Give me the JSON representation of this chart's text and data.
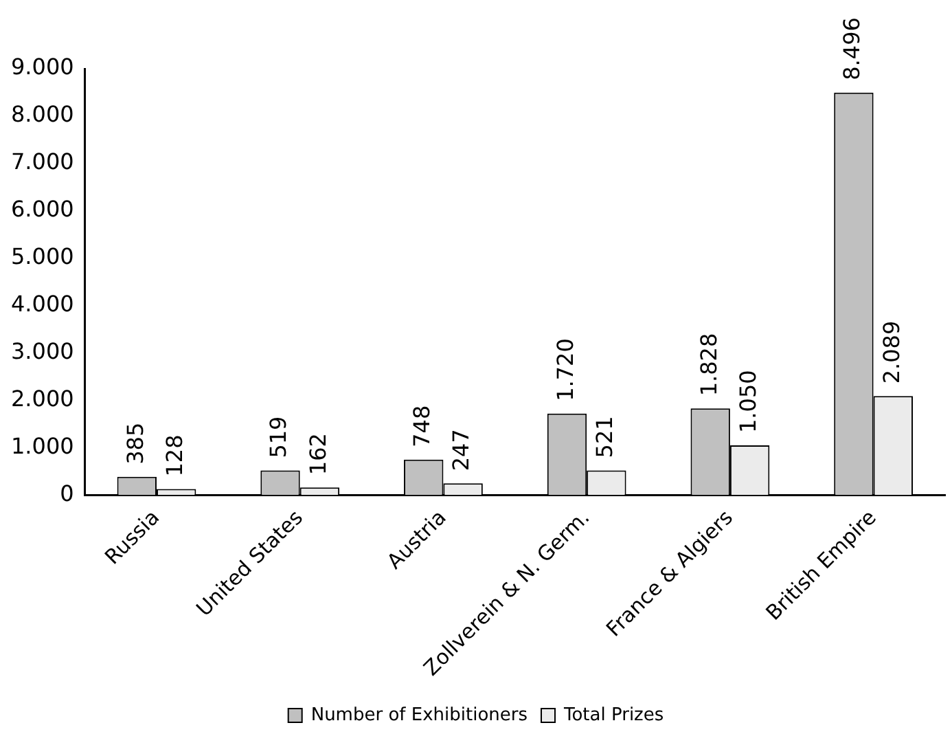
{
  "chart_data": {
    "type": "bar",
    "categories": [
      "Russia",
      "United States",
      "Austria",
      "Zollverein & N. Germ.",
      "France & Algiers",
      "British Empire"
    ],
    "series": [
      {
        "name": "Number of Exhibitioners",
        "color": "#c0c0c0",
        "values": [
          385,
          519,
          748,
          1720,
          1828,
          8496
        ],
        "value_labels": [
          "385",
          "519",
          "748",
          "1.720",
          "1.828",
          "8.496"
        ]
      },
      {
        "name": "Total Prizes",
        "color": "#ebebeb",
        "values": [
          128,
          162,
          247,
          521,
          1050,
          2089
        ],
        "value_labels": [
          "128",
          "162",
          "247",
          "521",
          "1.050",
          "2.089"
        ]
      }
    ],
    "ylim": [
      0,
      9000
    ],
    "yticks": [
      {
        "value": 0,
        "label": "0"
      },
      {
        "value": 1000,
        "label": "1.000"
      },
      {
        "value": 2000,
        "label": "2.000"
      },
      {
        "value": 3000,
        "label": "3.000"
      },
      {
        "value": 4000,
        "label": "4.000"
      },
      {
        "value": 5000,
        "label": "5.000"
      },
      {
        "value": 6000,
        "label": "6.000"
      },
      {
        "value": 7000,
        "label": "7.000"
      },
      {
        "value": 8000,
        "label": "8.000"
      },
      {
        "value": 9000,
        "label": "9.000"
      }
    ],
    "grid": false,
    "legend": "bottom"
  }
}
